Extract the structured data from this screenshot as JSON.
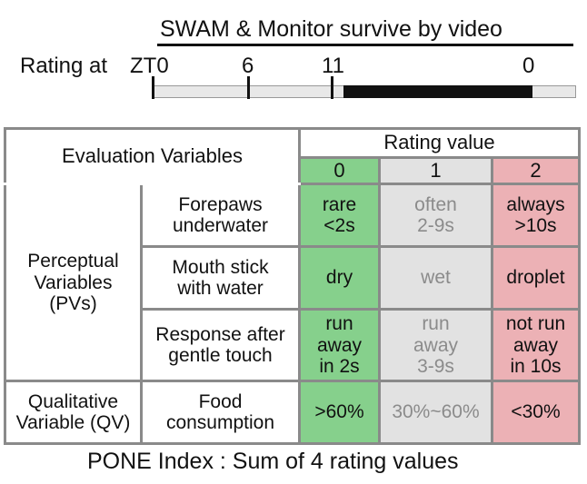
{
  "timeline": {
    "title": "SWAM & Monitor survive by video",
    "rating_label": "Rating at",
    "ticks": [
      "ZT0",
      "6",
      "11",
      "0"
    ]
  },
  "table": {
    "header": {
      "evaluation": "Evaluation Variables",
      "rating_value": "Rating value",
      "values": [
        "0",
        "1",
        "2"
      ]
    },
    "groups": {
      "perceptual": [
        "Perceptual",
        "Variables",
        "(PVs)"
      ],
      "qualitative": [
        "Qualitative",
        "Variable (QV)"
      ]
    },
    "rows": [
      {
        "variable": [
          "Forepaws",
          "underwater"
        ],
        "r0": [
          "rare",
          "<2s"
        ],
        "r1": [
          "often",
          "2-9s"
        ],
        "r2": [
          "always",
          ">10s"
        ]
      },
      {
        "variable": [
          "Mouth stick",
          "with water"
        ],
        "r0": [
          "dry"
        ],
        "r1": [
          "wet"
        ],
        "r2": [
          "droplet"
        ]
      },
      {
        "variable": [
          "Response after",
          "gentle touch"
        ],
        "r0": [
          "run",
          "away",
          "in 2s"
        ],
        "r1": [
          "run",
          "away",
          "3-9s"
        ],
        "r2": [
          "not run",
          "away",
          "in 10s"
        ]
      },
      {
        "variable": [
          "Food",
          "consumption"
        ],
        "r0": [
          ">60%"
        ],
        "r1": [
          "30%~60%"
        ],
        "r2": [
          "<30%"
        ]
      }
    ]
  },
  "footer": "PONE Index : Sum of 4 rating values",
  "colors": {
    "green": "#86d08c",
    "grey": "#e2e2e2",
    "pink": "#ecb1b5",
    "grid": "#8a8a8a"
  }
}
